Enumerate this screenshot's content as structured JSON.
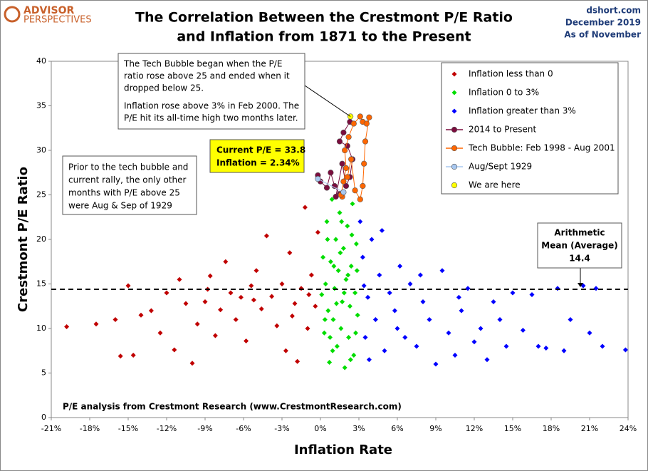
{
  "chart_data": {
    "type": "scatter",
    "title": [
      "The Correlation Between the Crestmont P/E Ratio",
      "and Inflation from 1871 to the Present"
    ],
    "brand": [
      "ADVISOR",
      "PERSPECTIVES"
    ],
    "source_info": [
      "dshort.com",
      "December 2019",
      "As of November"
    ],
    "x_label": "Inflation Rate",
    "y_label": "Crestmont P/E  Ratio",
    "footnote": "P/E analysis from Crestmont Research (www.CrestmontResearch.com)",
    "xlim": [
      -21,
      24
    ],
    "ylim": [
      0,
      40
    ],
    "xticks": [
      {
        "value": -21,
        "label": "-21%"
      },
      {
        "value": -18,
        "label": "-18%"
      },
      {
        "value": -15,
        "label": "-15%"
      },
      {
        "value": -12,
        "label": "-12%"
      },
      {
        "value": -9,
        "label": "-9%"
      },
      {
        "value": -6,
        "label": "-6%"
      },
      {
        "value": -3,
        "label": "-3%"
      },
      {
        "value": 0,
        "label": "0%"
      },
      {
        "value": 3,
        "label": "3%"
      },
      {
        "value": 6,
        "label": "6%"
      },
      {
        "value": 9,
        "label": "9%"
      },
      {
        "value": 12,
        "label": "12%"
      },
      {
        "value": 15,
        "label": "15%"
      },
      {
        "value": 18,
        "label": "18%"
      },
      {
        "value": 21,
        "label": "21%"
      },
      {
        "value": 24,
        "label": "24%"
      }
    ],
    "yticks": [
      0,
      5,
      10,
      15,
      20,
      25,
      30,
      35,
      40
    ],
    "mean": 14.4,
    "mean_label": [
      "Arithmetic",
      "Mean (Average)"
    ],
    "annotations": {
      "tech_bubble": [
        "The Tech Bubble began when the P/E",
        "ratio rose above 25 and ended when it",
        "dropped below 25.",
        "Inflation rose above 3% in Feb 2000.  The",
        "P/E hit its all-time high two months later."
      ],
      "current": [
        "Current P/E = 33.8",
        "Inflation = 2.34%"
      ],
      "prior": [
        "Prior to the tech bubble and",
        "current rally, the only other",
        "months with P/E above 25",
        "were Aug & Sep of 1929"
      ]
    },
    "series": [
      {
        "name": "Inflation less than 0",
        "color": "#c00000",
        "marker": "diamond",
        "line": false,
        "x": [
          -19.8,
          -17.5,
          -16,
          -15.6,
          -15,
          -14.6,
          -14,
          -13.2,
          -12.5,
          -12,
          -11.4,
          -11,
          -10.5,
          -10,
          -9.6,
          -9,
          -8.6,
          -8.2,
          -7.8,
          -7.4,
          -7,
          -6.6,
          -6.2,
          -5.8,
          -5.4,
          -5,
          -4.6,
          -4.2,
          -3.8,
          -3.4,
          -3,
          -2.7,
          -2.4,
          -2,
          -1.8,
          -1.5,
          -1.2,
          -1,
          -0.7,
          -0.4,
          -0.2,
          -2.2,
          -5.2,
          -8.8,
          -0.9
        ],
        "y": [
          10.2,
          10.5,
          11,
          6.9,
          14.8,
          7,
          11.5,
          12,
          9.5,
          14,
          7.6,
          15.5,
          12.8,
          6.1,
          10.5,
          13,
          15.9,
          9.2,
          12.1,
          17.5,
          14,
          11,
          13.5,
          8.6,
          14.8,
          16.5,
          12.2,
          20.4,
          13.6,
          10.3,
          15,
          7.5,
          18.5,
          12.8,
          6.3,
          14.5,
          23.6,
          10,
          16,
          12.5,
          20.8,
          11.4,
          13.2,
          14.4,
          13.8
        ]
      },
      {
        "name": "Inflation  0 to 3%",
        "color": "#00dd00",
        "marker": "diamond",
        "line": false,
        "x": [
          0.1,
          0.2,
          0.3,
          0.4,
          0.5,
          0.6,
          0.7,
          0.8,
          0.9,
          1.0,
          1.1,
          1.2,
          1.3,
          1.4,
          1.5,
          1.6,
          1.7,
          1.8,
          1.9,
          2.0,
          2.1,
          2.2,
          2.3,
          2.4,
          2.5,
          2.6,
          2.7,
          2.8,
          2.9,
          0.35,
          0.95,
          1.55,
          2.15,
          2.75,
          1.25,
          0.55,
          1.85,
          2.45,
          0.75,
          1.65,
          2.85,
          1.05,
          2.35
        ],
        "y": [
          13.8,
          18,
          9.5,
          15,
          22,
          12,
          6.2,
          17.5,
          24.5,
          11,
          14.5,
          20,
          8,
          16.5,
          23,
          10,
          13,
          19,
          5.6,
          15.5,
          21.5,
          9,
          12.5,
          17,
          24,
          7,
          14,
          19.5,
          11.5,
          11,
          7.5,
          18.5,
          16,
          9.5,
          12.8,
          20,
          14,
          20.5,
          9,
          22,
          16.5,
          17,
          6.5
        ]
      },
      {
        "name": "Inflation greater than 3%",
        "color": "#0000ff",
        "marker": "diamond",
        "line": false,
        "x": [
          3.1,
          3.3,
          3.5,
          3.7,
          4,
          4.3,
          4.6,
          5,
          5.4,
          5.8,
          6.2,
          6.6,
          7,
          7.5,
          8,
          8.5,
          9,
          9.5,
          10,
          10.5,
          11,
          11.5,
          12,
          12.5,
          13,
          13.5,
          14,
          14.5,
          15,
          15.8,
          16.5,
          17,
          17.6,
          18.5,
          19,
          19.5,
          20.5,
          21,
          21.5,
          22,
          23.8,
          3.8,
          4.8,
          6,
          3.4,
          7.8,
          10.8
        ],
        "y": [
          22,
          18,
          9,
          13.5,
          20,
          11,
          16,
          7.5,
          14,
          12,
          17,
          9,
          15,
          8,
          13,
          11,
          6,
          16.5,
          9.5,
          7,
          12,
          14.5,
          8.5,
          10,
          6.5,
          13,
          11,
          8,
          14,
          9.8,
          13.8,
          8,
          7.8,
          14.5,
          7.5,
          11,
          14.8,
          9.5,
          14.5,
          8,
          7.6,
          6.5,
          21,
          10,
          14.8,
          16,
          13.5
        ]
      },
      {
        "name": "2014 to Present",
        "color": "#7b0d3e",
        "marker": "circle",
        "line": true,
        "x": [
          -0.2,
          0,
          0.5,
          0.8,
          1.1,
          1.5,
          1.2,
          1.7,
          2,
          2.3,
          2.5,
          2.1,
          1.5,
          1.8,
          2.3
        ],
        "y": [
          27.2,
          26.5,
          25.8,
          27.5,
          26,
          25.1,
          24.8,
          28.5,
          26,
          27,
          29,
          30.5,
          31,
          32,
          33.2
        ]
      },
      {
        "name": "Tech Bubble: Feb 1998 - Aug 2001",
        "color": "#ff6600",
        "marker": "circle",
        "line": true,
        "x": [
          1.7,
          1.6,
          1.8,
          2,
          1.9,
          2.2,
          2.6,
          3.1,
          3.3,
          3.6,
          3.8,
          3.5,
          3.4,
          3.3,
          3.1,
          2.7,
          2.4,
          2.1
        ],
        "y": [
          24.8,
          25,
          26.5,
          28,
          30,
          31.5,
          33,
          33.8,
          33.2,
          33,
          33.7,
          31,
          28.5,
          26,
          24.5,
          25.5,
          29,
          27
        ]
      },
      {
        "name": "Aug/Sept 1929",
        "color": "#a8c8f0",
        "marker": "circle",
        "line": true,
        "x": [
          -0.2,
          1.8
        ],
        "y": [
          26.8,
          25.3
        ]
      },
      {
        "name": "We are here",
        "color": "#ffff00",
        "marker": "circle",
        "line": false,
        "x": [
          2.34
        ],
        "y": [
          33.8
        ]
      }
    ]
  }
}
